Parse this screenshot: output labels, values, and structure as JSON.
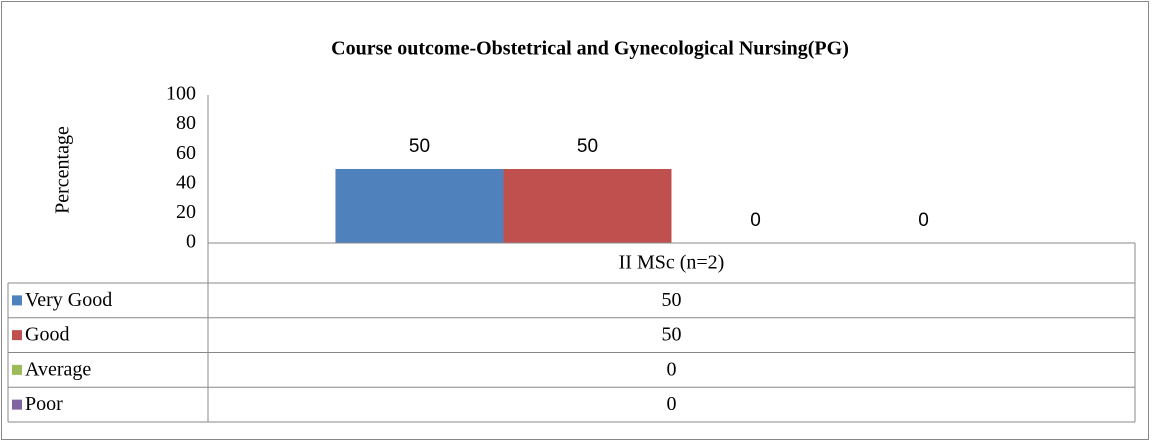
{
  "chart_data": {
    "type": "bar",
    "title": "Course outcome-Obstetrical and Gynecological Nursing(PG)",
    "y_label": "Percentage",
    "categories": [
      "II MSc (n=2)"
    ],
    "series": [
      {
        "name": "Very Good",
        "color": "#4f81bd",
        "values": [
          50
        ]
      },
      {
        "name": "Good",
        "color": "#c0504d",
        "values": [
          50
        ]
      },
      {
        "name": "Average",
        "color": "#9bbb59",
        "values": [
          0
        ]
      },
      {
        "name": "Poor",
        "color": "#8064a2",
        "values": [
          0
        ]
      }
    ],
    "ylim": [
      0,
      100
    ],
    "yticks": [
      0,
      20,
      40,
      60,
      80,
      100
    ],
    "grid": false,
    "data_table": true
  }
}
